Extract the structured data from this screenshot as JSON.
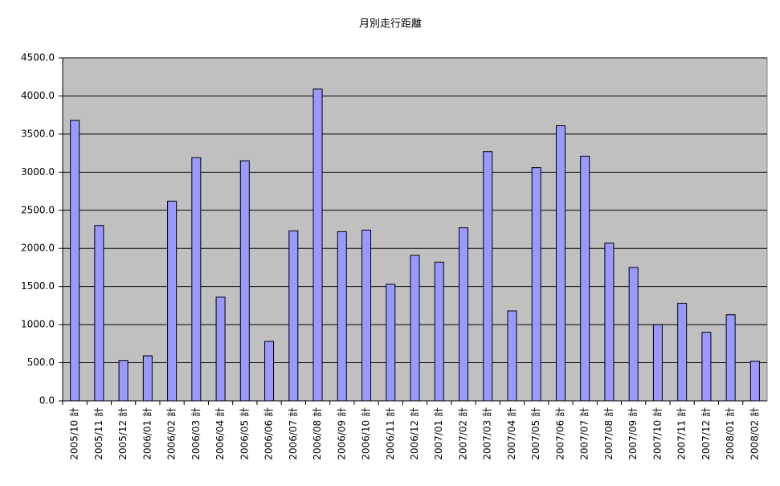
{
  "chart_data": {
    "type": "bar",
    "title": "月別走行距離",
    "categories": [
      "2005/10 計",
      "2005/11 計",
      "2005/12 計",
      "2006/01 計",
      "2006/02 計",
      "2006/03 計",
      "2006/04 計",
      "2006/05 計",
      "2006/06 計",
      "2006/07 計",
      "2006/08 計",
      "2006/09 計",
      "2006/10 計",
      "2006/11 計",
      "2006/12 計",
      "2007/01 計",
      "2007/02 計",
      "2007/03 計",
      "2007/04 計",
      "2007/05 計",
      "2007/06 計",
      "2007/07 計",
      "2007/08 計",
      "2007/09 計",
      "2007/10 計",
      "2007/11 計",
      "2007/12 計",
      "2008/01 計",
      "2008/02 計"
    ],
    "values": [
      3680,
      2300,
      530,
      590,
      2620,
      3190,
      1360,
      3150,
      780,
      2230,
      4090,
      2220,
      2240,
      1530,
      1910,
      1820,
      2270,
      3270,
      1180,
      3060,
      3610,
      3210,
      2070,
      1750,
      1000,
      1280,
      900,
      1130,
      520
    ],
    "color": "#9999ff",
    "ylim": [
      0,
      4500
    ],
    "yticks": [
      {
        "value": 0,
        "label": "0.0"
      },
      {
        "value": 500,
        "label": "500.0"
      },
      {
        "value": 1000,
        "label": "1000.0"
      },
      {
        "value": 1500,
        "label": "1500.0"
      },
      {
        "value": 2000,
        "label": "2000.0"
      },
      {
        "value": 2500,
        "label": "2500.0"
      },
      {
        "value": 3000,
        "label": "3000.0"
      },
      {
        "value": 3500,
        "label": "3500.0"
      },
      {
        "value": 4000,
        "label": "4000.0"
      },
      {
        "value": 4500,
        "label": "4500.0"
      }
    ],
    "grid": true
  }
}
